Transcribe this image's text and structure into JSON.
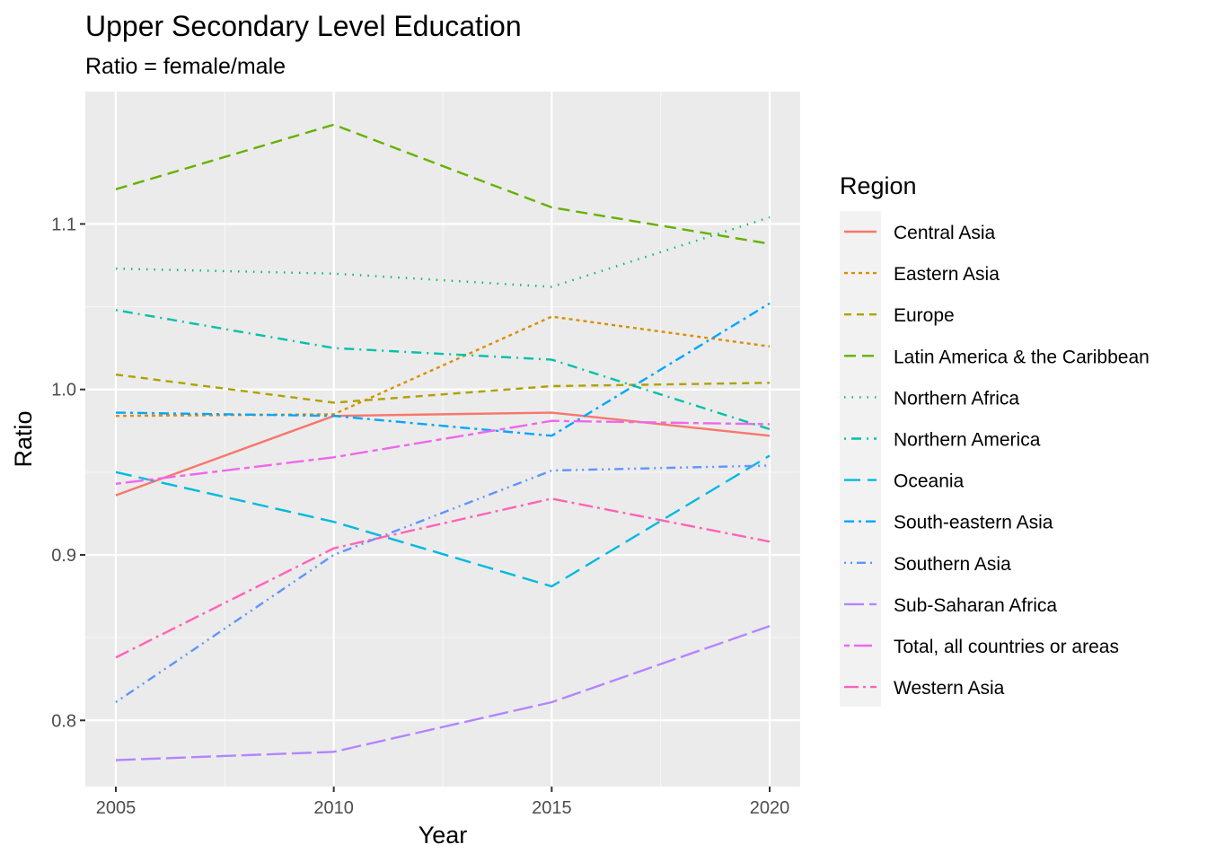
{
  "chart_data": {
    "type": "line",
    "title": "Upper Secondary Level Education",
    "subtitle": "Ratio = female/male",
    "xlabel": "Year",
    "ylabel": "Ratio",
    "x": [
      2005,
      2010,
      2015,
      2020
    ],
    "xlim": [
      2004.3,
      2020.7
    ],
    "ylim": [
      0.76,
      1.18
    ],
    "xticks": [
      2005,
      2010,
      2015,
      2020
    ],
    "yticks": [
      0.8,
      0.9,
      1.0,
      1.1
    ],
    "ytick_labels": [
      "0.8",
      "0.9",
      "1.0",
      "1.1"
    ],
    "grid": true,
    "legend": {
      "title": "Region",
      "position": "right"
    },
    "series": [
      {
        "name": "Central Asia",
        "color": "#F8766D",
        "dash": "solid",
        "values": [
          0.936,
          0.984,
          0.986,
          0.972
        ]
      },
      {
        "name": "Eastern Asia",
        "color": "#DB8E00",
        "dash": "short",
        "values": [
          0.984,
          0.985,
          1.044,
          1.026
        ]
      },
      {
        "name": "Europe",
        "color": "#AEA200",
        "dash": "dashed",
        "values": [
          1.009,
          0.992,
          1.002,
          1.004
        ]
      },
      {
        "name": "Latin America & the Caribbean",
        "color": "#64B200",
        "dash": "longdash",
        "values": [
          1.121,
          1.16,
          1.11,
          1.088
        ]
      },
      {
        "name": "Northern Africa",
        "color": "#00BD5C",
        "dash": "dotted",
        "values": [
          1.073,
          1.07,
          1.062,
          1.104
        ]
      },
      {
        "name": "Northern America",
        "color": "#00C1A7",
        "dash": "dotdash",
        "values": [
          1.048,
          1.025,
          1.018,
          0.976
        ]
      },
      {
        "name": "Oceania",
        "color": "#00BADE",
        "dash": "longdash2",
        "values": [
          0.95,
          0.92,
          0.881,
          0.96
        ]
      },
      {
        "name": "South-eastern Asia",
        "color": "#00A6FF",
        "dash": "dashdot2",
        "values": [
          0.986,
          0.984,
          0.972,
          1.052
        ]
      },
      {
        "name": "Southern Asia",
        "color": "#5F94FF",
        "dash": "dotdotdash",
        "values": [
          0.811,
          0.9,
          0.951,
          0.954
        ]
      },
      {
        "name": "Sub-Saharan Africa",
        "color": "#B385FF",
        "dash": "longdash3",
        "values": [
          0.776,
          0.781,
          0.811,
          0.857
        ]
      },
      {
        "name": "Total, all countries or areas",
        "color": "#EF67EB",
        "dash": "twodash",
        "values": [
          0.943,
          0.959,
          0.981,
          0.979
        ]
      },
      {
        "name": "Western Asia",
        "color": "#FF63B6",
        "dash": "dashdot3",
        "values": [
          0.838,
          0.904,
          0.934,
          0.908
        ]
      }
    ]
  }
}
